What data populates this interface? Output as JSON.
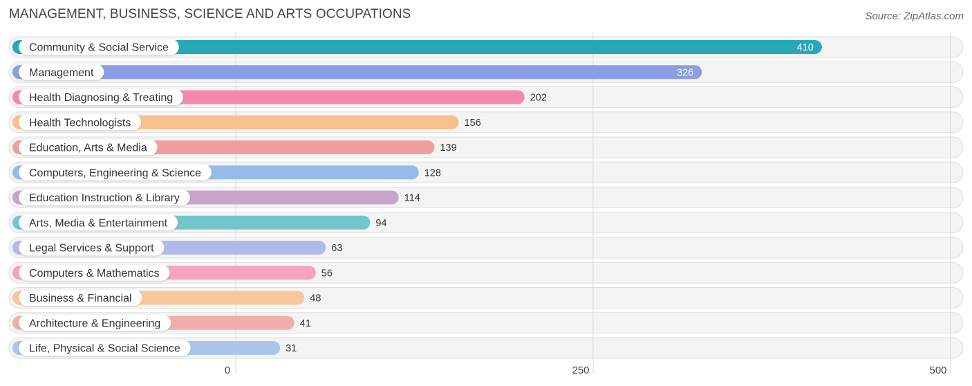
{
  "header": {
    "title": "MANAGEMENT, BUSINESS, SCIENCE AND ARTS OCCUPATIONS",
    "source": "Source: ZipAtlas.com"
  },
  "chart_data": {
    "type": "bar",
    "orientation": "horizontal",
    "title": "MANAGEMENT, BUSINESS, SCIENCE AND ARTS OCCUPATIONS",
    "xlabel": "",
    "ylabel": "",
    "xlim": [
      0,
      500
    ],
    "ticks": [
      0,
      250,
      500
    ],
    "tick_labels": [
      "0",
      "250",
      "500"
    ],
    "grid": true,
    "categories": [
      "Community & Social Service",
      "Management",
      "Health Diagnosing & Treating",
      "Health Technologists",
      "Education, Arts & Media",
      "Computers, Engineering & Science",
      "Education Instruction & Library",
      "Arts, Media & Entertainment",
      "Legal Services & Support",
      "Computers & Mathematics",
      "Business & Financial",
      "Architecture & Engineering",
      "Life, Physical & Social Science"
    ],
    "values": [
      410,
      326,
      202,
      156,
      139,
      128,
      114,
      94,
      63,
      56,
      48,
      41,
      31
    ],
    "colors": [
      "#26a8b8",
      "#8b9ee3",
      "#f48aab",
      "#f9c08c",
      "#eea09d",
      "#96bbe6",
      "#c9a5cb",
      "#74c6cd",
      "#b2b9ec",
      "#f7a2bf",
      "#f9c79a",
      "#f0aeab",
      "#a9c6ec"
    ]
  }
}
